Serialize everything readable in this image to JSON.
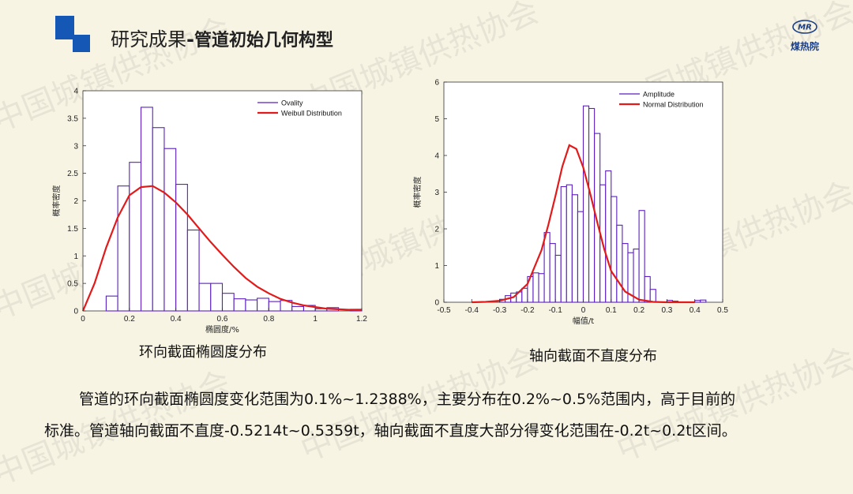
{
  "header": {
    "title_main": "研究成果",
    "title_sep": "-",
    "title_sub": "管道初始几何构型"
  },
  "brand": {
    "emblem": "MR",
    "name": "煤热院"
  },
  "watermark": "中国城镇供热协会",
  "colors": {
    "accent": "#1457b5",
    "bar": "#5b1fbf",
    "curve": "#e21a1a",
    "background": "#f7f4e4"
  },
  "chart_data": [
    {
      "type": "bar",
      "bins_start": 0.0,
      "bin_width": 0.05,
      "values": [
        0,
        0,
        0.27,
        2.27,
        2.7,
        3.7,
        3.33,
        2.95,
        2.3,
        1.47,
        0.5,
        0.5,
        0.32,
        0.22,
        0.2,
        0.23,
        0.17,
        0.19,
        0.08,
        0.1,
        0.04,
        0.06,
        0,
        0.03
      ],
      "curve": {
        "name": "Weibull Distribution",
        "x": [
          0,
          0.05,
          0.1,
          0.15,
          0.2,
          0.25,
          0.3,
          0.35,
          0.4,
          0.45,
          0.5,
          0.55,
          0.6,
          0.65,
          0.7,
          0.75,
          0.8,
          0.85,
          0.9,
          0.95,
          1.0,
          1.05,
          1.1,
          1.15,
          1.2
        ],
        "y": [
          0,
          0.5,
          1.15,
          1.7,
          2.1,
          2.25,
          2.27,
          2.15,
          1.97,
          1.75,
          1.5,
          1.25,
          1.02,
          0.8,
          0.6,
          0.44,
          0.32,
          0.22,
          0.15,
          0.1,
          0.07,
          0.04,
          0.03,
          0.02,
          0.01
        ]
      },
      "legend": [
        "Ovality",
        "Weibull Distribution"
      ],
      "xlim": [
        0,
        1.2
      ],
      "ylim": [
        0,
        4
      ],
      "x_ticks": [
        "0",
        "0.2",
        "0.4",
        "0.6",
        "0.8",
        "1",
        "1.2"
      ],
      "y_ticks": [
        "0",
        "0.5",
        "1",
        "1.5",
        "2",
        "2.5",
        "3",
        "3.5",
        "4"
      ],
      "xlabel": "椭圆度/%",
      "ylabel": "概率密度",
      "caption": "环向截面椭圆度分布"
    },
    {
      "type": "bar",
      "bins_start": -0.3,
      "bin_width": 0.02,
      "values": [
        0.08,
        0.18,
        0.25,
        0.28,
        0.38,
        0.7,
        0.8,
        0.78,
        1.9,
        1.6,
        1.28,
        3.15,
        3.2,
        2.93,
        2.47,
        5.35,
        5.28,
        4.6,
        3.2,
        3.58,
        2.88,
        2.1,
        1.6,
        1.35,
        1.45,
        2.5,
        0.7,
        0.35,
        0,
        0,
        0.05,
        0.03,
        0,
        0,
        0,
        0.05,
        0.06
      ],
      "curve": {
        "name": "Normal Distribution",
        "x": [
          -0.4,
          -0.35,
          -0.3,
          -0.25,
          -0.2,
          -0.15,
          -0.125,
          -0.1,
          -0.075,
          -0.05,
          -0.025,
          0,
          0.025,
          0.05,
          0.075,
          0.1,
          0.15,
          0.2,
          0.25,
          0.3,
          0.35,
          0.4
        ],
        "y": [
          0.0,
          0.01,
          0.04,
          0.14,
          0.5,
          1.42,
          2.12,
          2.89,
          3.7,
          4.28,
          4.18,
          3.67,
          2.96,
          2.18,
          1.45,
          0.85,
          0.29,
          0.07,
          0.01,
          0.0,
          0.0,
          0.0
        ]
      },
      "legend": [
        "Amplitude",
        "Normal Distribution"
      ],
      "xlim": [
        -0.5,
        0.5
      ],
      "ylim": [
        0,
        6
      ],
      "x_ticks": [
        "-0.5",
        "-0.4",
        "-0.3",
        "-0.2",
        "-0.1",
        "0",
        "0.1",
        "0.2",
        "0.3",
        "0.4",
        "0.5"
      ],
      "y_ticks": [
        "0",
        "1",
        "2",
        "3",
        "4",
        "5",
        "6"
      ],
      "xlabel": "幅值/t",
      "ylabel": "概率密度",
      "caption": "轴向截面不直度分布"
    }
  ],
  "body": {
    "line1": "管道的环向截面椭圆度变化范围为0.1%~1.2388%，主要分布在0.2%~0.5%范围内，高于目前的",
    "line2": "标准。管道轴向截面不直度-0.5214t~0.5359t，轴向截面不直度大部分得变化范围在-0.2t~0.2t区间。"
  }
}
